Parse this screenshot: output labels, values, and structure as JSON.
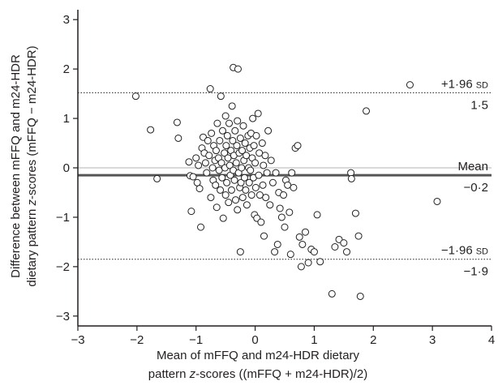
{
  "chart_data": {
    "type": "scatter",
    "title": "",
    "xlabel_line1": "Mean of mFFQ and m24-HDR dietary",
    "xlabel_line2_pre": "pattern ",
    "xlabel_line2_italic": "z",
    "xlabel_line2_post": "-scores ((mFFQ + m24-HDR)/2)",
    "ylabel_line1": "Difference between mFFQ and m24-HDR",
    "ylabel_line2_pre": "dietary pattern ",
    "ylabel_line2_italic": "z",
    "ylabel_line2_post": "-scores (mFFQ − m24-HDR)",
    "xlim": [
      -3,
      4
    ],
    "ylim": [
      -3.2,
      3.2
    ],
    "xticks": [
      -3,
      -2,
      -1,
      0,
      1,
      2,
      3,
      4
    ],
    "xtick_labels": [
      "−3",
      "−2",
      "−1",
      "0",
      "1",
      "2",
      "3",
      "4"
    ],
    "yticks": [
      -3,
      -2,
      -1,
      0,
      1,
      2,
      3
    ],
    "ytick_labels": [
      "−3",
      "−2",
      "−1",
      "0",
      "1",
      "2",
      "3"
    ],
    "reference_lines": [
      {
        "value": 1.52,
        "label_top": "+1·96",
        "label_top_sc": "SD",
        "label_bottom": "1·5",
        "style": "dotted"
      },
      {
        "value": -0.15,
        "label_top": "Mean",
        "label_top_sc": "",
        "label_bottom": "−0·2",
        "style": "solid"
      },
      {
        "value": -1.85,
        "label_top": "−1·96",
        "label_top_sc": "SD",
        "label_bottom": "−1·9",
        "style": "dotted"
      }
    ],
    "zero_line": 0,
    "grid": false,
    "points": [
      [
        -2.02,
        1.45
      ],
      [
        -1.77,
        0.77
      ],
      [
        -1.66,
        -0.22
      ],
      [
        -1.32,
        0.92
      ],
      [
        -1.3,
        0.6
      ],
      [
        -1.12,
        0.12
      ],
      [
        -1.1,
        -0.16
      ],
      [
        -1.08,
        -0.88
      ],
      [
        -1.05,
        -0.18
      ],
      [
        -1.0,
        0.2
      ],
      [
        -0.98,
        -0.3
      ],
      [
        -0.96,
        0.05
      ],
      [
        -0.94,
        -0.42
      ],
      [
        -0.92,
        -1.2
      ],
      [
        -0.9,
        0.4
      ],
      [
        -0.88,
        0.62
      ],
      [
        -0.86,
        0.3
      ],
      [
        -0.84,
        0.1
      ],
      [
        -0.82,
        -0.1
      ],
      [
        -0.8,
        0.55
      ],
      [
        -0.78,
        0.25
      ],
      [
        -0.76,
        1.6
      ],
      [
        -0.75,
        -0.6
      ],
      [
        -0.74,
        0.7
      ],
      [
        -0.72,
        0.0
      ],
      [
        -0.71,
        -0.25
      ],
      [
        -0.7,
        0.45
      ],
      [
        -0.68,
        0.15
      ],
      [
        -0.67,
        -0.35
      ],
      [
        -0.66,
        0.35
      ],
      [
        -0.65,
        -0.8
      ],
      [
        -0.64,
        0.9
      ],
      [
        -0.62,
        0.2
      ],
      [
        -0.61,
        -0.05
      ],
      [
        -0.6,
        0.55
      ],
      [
        -0.59,
        -0.45
      ],
      [
        -0.58,
        1.45
      ],
      [
        -0.57,
        0.1
      ],
      [
        -0.56,
        -0.2
      ],
      [
        -0.55,
        0.75
      ],
      [
        -0.54,
        -1.02
      ],
      [
        -0.52,
        0.3
      ],
      [
        -0.51,
        0.0
      ],
      [
        -0.5,
        1.05
      ],
      [
        -0.5,
        -0.55
      ],
      [
        -0.49,
        0.45
      ],
      [
        -0.48,
        -0.3
      ],
      [
        -0.47,
        0.65
      ],
      [
        -0.46,
        0.2
      ],
      [
        -0.45,
        -0.7
      ],
      [
        -0.44,
        0.9
      ],
      [
        -0.43,
        0.05
      ],
      [
        -0.42,
        -0.15
      ],
      [
        -0.41,
        0.35
      ],
      [
        -0.4,
        -0.45
      ],
      [
        -0.39,
        1.25
      ],
      [
        -0.38,
        0.55
      ],
      [
        -0.37,
        2.03
      ],
      [
        -0.37,
        -0.05
      ],
      [
        -0.36,
        0.25
      ],
      [
        -0.35,
        -0.25
      ],
      [
        -0.34,
        0.75
      ],
      [
        -0.33,
        -0.65
      ],
      [
        -0.32,
        0.1
      ],
      [
        -0.31,
        0.45
      ],
      [
        -0.3,
        -0.85
      ],
      [
        -0.3,
        0.95
      ],
      [
        -0.29,
        2.0
      ],
      [
        -0.28,
        -0.1
      ],
      [
        -0.27,
        0.3
      ],
      [
        -0.26,
        -0.4
      ],
      [
        -0.25,
        0.6
      ],
      [
        -0.24,
        -0.3
      ],
      [
        -0.23,
        0.0
      ],
      [
        -0.22,
        0.35
      ],
      [
        -0.21,
        -0.6
      ],
      [
        -0.2,
        0.85
      ],
      [
        -0.19,
        0.15
      ],
      [
        -0.18,
        -0.2
      ],
      [
        -0.17,
        0.5
      ],
      [
        -0.16,
        -0.45
      ],
      [
        -0.15,
        0.25
      ],
      [
        -0.14,
        -0.75
      ],
      [
        -0.12,
        0.65
      ],
      [
        -0.11,
        0.0
      ],
      [
        -0.1,
        -0.3
      ],
      [
        -0.09,
        0.4
      ],
      [
        -0.08,
        -0.05
      ],
      [
        -0.07,
        0.7
      ],
      [
        -0.06,
        -0.55
      ],
      [
        -0.05,
        0.2
      ],
      [
        -0.04,
        1.0
      ],
      [
        -0.03,
        -0.2
      ],
      [
        -0.02,
        0.45
      ],
      [
        -0.01,
        -0.95
      ],
      [
        0.0,
        0.1
      ],
      [
        0.01,
        -0.4
      ],
      [
        0.02,
        0.65
      ],
      [
        0.03,
        -1.02
      ],
      [
        0.05,
        1.1
      ],
      [
        0.06,
        -0.15
      ],
      [
        0.07,
        0.3
      ],
      [
        0.08,
        -0.55
      ],
      [
        0.1,
        -1.1
      ],
      [
        0.12,
        0.5
      ],
      [
        0.13,
        -0.35
      ],
      [
        0.14,
        0.05
      ],
      [
        0.15,
        -1.38
      ],
      [
        0.17,
        0.25
      ],
      [
        0.18,
        -0.6
      ],
      [
        0.2,
        -0.1
      ],
      [
        0.22,
        0.75
      ],
      [
        0.25,
        -0.75
      ],
      [
        0.27,
        0.15
      ],
      [
        0.3,
        -0.3
      ],
      [
        0.33,
        -1.7
      ],
      [
        0.35,
        -0.1
      ],
      [
        0.38,
        -1.55
      ],
      [
        0.4,
        -0.5
      ],
      [
        0.42,
        -0.82
      ],
      [
        0.45,
        -1.0
      ],
      [
        0.48,
        -0.55
      ],
      [
        0.5,
        -1.2
      ],
      [
        0.52,
        -0.25
      ],
      [
        0.55,
        -0.35
      ],
      [
        0.58,
        -0.9
      ],
      [
        0.6,
        -1.75
      ],
      [
        0.62,
        -0.1
      ],
      [
        0.65,
        -0.4
      ],
      [
        0.68,
        0.4
      ],
      [
        0.72,
        0.45
      ],
      [
        0.75,
        -1.4
      ],
      [
        0.78,
        -2.0
      ],
      [
        0.8,
        -1.55
      ],
      [
        0.85,
        -1.3
      ],
      [
        0.9,
        -1.92
      ],
      [
        0.95,
        -1.65
      ],
      [
        1.0,
        -1.7
      ],
      [
        1.05,
        -0.95
      ],
      [
        1.1,
        -1.9
      ],
      [
        1.3,
        -2.55
      ],
      [
        1.35,
        -1.6
      ],
      [
        1.42,
        -1.45
      ],
      [
        1.5,
        -1.52
      ],
      [
        1.55,
        -1.7
      ],
      [
        1.62,
        -0.1
      ],
      [
        1.63,
        -0.22
      ],
      [
        1.7,
        -0.92
      ],
      [
        1.75,
        -1.38
      ],
      [
        1.78,
        -2.6
      ],
      [
        1.88,
        1.15
      ],
      [
        2.62,
        1.68
      ],
      [
        3.08,
        -0.68
      ],
      [
        -0.25,
        -1.7
      ]
    ]
  }
}
